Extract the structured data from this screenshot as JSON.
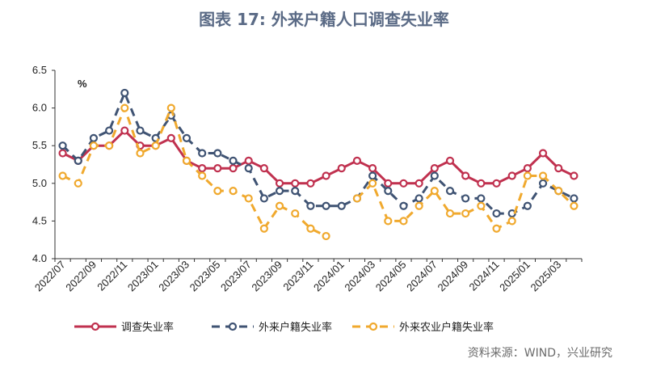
{
  "title": "图表 17: 外来户籍人口调查失业率",
  "source": "资料来源：WIND，兴业研究",
  "chart_data": {
    "type": "line",
    "ylabel": "%",
    "ylim": [
      4.0,
      6.5
    ],
    "yticks": [
      "4.0",
      "4.5",
      "5.0",
      "5.5",
      "6.0",
      "6.5"
    ],
    "x": [
      "2022/07",
      "2022/08",
      "2022/09",
      "2022/10",
      "2022/11",
      "2022/12",
      "2023/01",
      "2023/02",
      "2023/03",
      "2023/04",
      "2023/05",
      "2023/06",
      "2023/07",
      "2023/08",
      "2023/09",
      "2023/10",
      "2023/11",
      "2023/12",
      "2024/01",
      "2024/02",
      "2024/03",
      "2024/04",
      "2024/05",
      "2024/06",
      "2024/07",
      "2024/08",
      "2024/09",
      "2024/10",
      "2024/11",
      "2024/12",
      "2025/01",
      "2025/02",
      "2025/03",
      "2025/04"
    ],
    "xtick_labels": [
      "2022/07",
      "2022/09",
      "2022/11",
      "2023/01",
      "2023/03",
      "2023/05",
      "2023/07",
      "2023/09",
      "2023/11",
      "2024/01",
      "2024/03",
      "2024/05",
      "2024/07",
      "2024/09",
      "2024/11",
      "2025/01",
      "2025/03"
    ],
    "legend_position": "bottom",
    "series": [
      {
        "name": "调查失业率",
        "color": "#c0314f",
        "style": "solid",
        "values": [
          5.4,
          5.3,
          5.5,
          5.5,
          5.7,
          5.5,
          5.5,
          5.6,
          5.3,
          5.2,
          5.2,
          5.2,
          5.3,
          5.2,
          5.0,
          5.0,
          5.0,
          5.1,
          5.2,
          5.3,
          5.2,
          5.0,
          5.0,
          5.0,
          5.2,
          5.3,
          5.1,
          5.0,
          5.0,
          5.1,
          5.2,
          5.4,
          5.2,
          5.1
        ]
      },
      {
        "name": "外来户籍失业率",
        "color": "#3f5373",
        "style": "dash",
        "values": [
          5.5,
          5.3,
          5.6,
          5.7,
          6.2,
          5.7,
          5.6,
          5.9,
          5.6,
          5.4,
          5.4,
          5.3,
          5.2,
          4.8,
          4.9,
          4.9,
          4.7,
          4.7,
          4.7,
          4.8,
          5.1,
          4.9,
          4.7,
          4.8,
          5.1,
          4.9,
          4.8,
          4.8,
          4.6,
          4.6,
          4.7,
          5.0,
          4.9,
          4.8
        ]
      },
      {
        "name": "外来农业户籍失业率",
        "color": "#f0a92e",
        "style": "dash",
        "values": [
          5.1,
          5.0,
          5.5,
          5.5,
          6.0,
          5.4,
          5.5,
          6.0,
          5.3,
          5.1,
          4.9,
          4.9,
          4.8,
          4.4,
          4.7,
          4.6,
          4.4,
          4.3,
          null,
          4.8,
          5.0,
          4.5,
          4.5,
          4.7,
          4.9,
          4.6,
          4.6,
          4.7,
          4.4,
          4.5,
          5.1,
          5.1,
          4.9,
          4.7
        ]
      }
    ]
  }
}
